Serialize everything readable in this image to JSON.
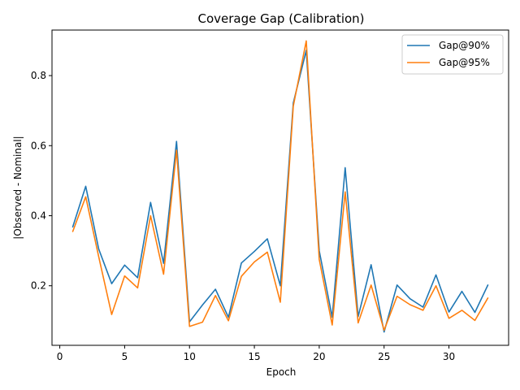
{
  "chart_data": {
    "type": "line",
    "title": "Coverage Gap (Calibration)",
    "xlabel": "Epoch",
    "ylabel": "|Observed - Nominal|",
    "xlim": [
      -0.6,
      34.6
    ],
    "ylim": [
      0.03,
      0.93
    ],
    "xticks": [
      0,
      5,
      10,
      15,
      20,
      25,
      30
    ],
    "yticks": [
      0.2,
      0.4,
      0.6,
      0.8
    ],
    "ytick_labels": [
      "0.2",
      "0.4",
      "0.6",
      "0.8"
    ],
    "grid": false,
    "legend_position": "upper right",
    "x": [
      1,
      2,
      3,
      4,
      5,
      6,
      7,
      8,
      9,
      10,
      11,
      12,
      13,
      14,
      15,
      16,
      17,
      18,
      19,
      20,
      21,
      22,
      23,
      24,
      25,
      26,
      27,
      28,
      29,
      30,
      31,
      32,
      33
    ],
    "series": [
      {
        "name": "Gap@90%",
        "color": "#1f77b4",
        "values": [
          0.368,
          0.484,
          0.305,
          0.206,
          0.259,
          0.223,
          0.438,
          0.264,
          0.612,
          0.097,
          0.145,
          0.19,
          0.11,
          0.265,
          0.298,
          0.334,
          0.2,
          0.722,
          0.872,
          0.3,
          0.11,
          0.537,
          0.112,
          0.26,
          0.068,
          0.202,
          0.163,
          0.139,
          0.231,
          0.125,
          0.184,
          0.124,
          0.202
        ]
      },
      {
        "name": "Gap@95%",
        "color": "#ff7f0e",
        "values": [
          0.355,
          0.454,
          0.283,
          0.118,
          0.228,
          0.194,
          0.4,
          0.233,
          0.587,
          0.084,
          0.096,
          0.172,
          0.1,
          0.227,
          0.268,
          0.296,
          0.153,
          0.713,
          0.899,
          0.275,
          0.088,
          0.468,
          0.094,
          0.202,
          0.073,
          0.17,
          0.146,
          0.13,
          0.2,
          0.107,
          0.13,
          0.101,
          0.165
        ]
      }
    ]
  }
}
